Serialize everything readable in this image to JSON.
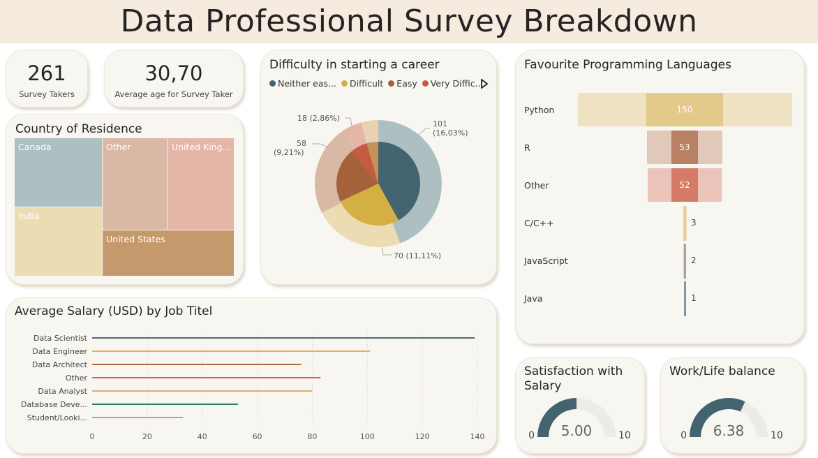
{
  "header": {
    "title": "Data Professional Survey Breakdown"
  },
  "kpis": [
    {
      "value": "261",
      "label": "Survey Takers"
    },
    {
      "value": "30,70",
      "label": "Average age for Survey Taker"
    }
  ],
  "treemap": {
    "title": "Country of Residence",
    "cells": [
      {
        "label": "Canada",
        "color": "#adbfc1"
      },
      {
        "label": "Other",
        "color": "#d9b8a6"
      },
      {
        "label": "United King...",
        "color": "#e5b5a8"
      },
      {
        "label": "India",
        "color": "#ecdcb4"
      },
      {
        "label": "United States",
        "color": "#c49a6c"
      }
    ]
  },
  "difficulty": {
    "title": "Difficulty in starting a career",
    "legend": [
      {
        "label": "Neither eas...",
        "color": "#41646f"
      },
      {
        "label": "Difficult",
        "color": "#d4af43"
      },
      {
        "label": "Easy",
        "color": "#a4613a"
      },
      {
        "label": "Very Diffic...",
        "color": "#c55b40"
      }
    ],
    "legend_more_icon": "triangle-right-icon",
    "labels": [
      {
        "line1": "101",
        "line2": "(16,03%)"
      },
      {
        "line1": "70 (11,11%)",
        "line2": ""
      },
      {
        "line1": "58",
        "line2": "(9,21%)"
      },
      {
        "line1": "18 (2,86%)",
        "line2": ""
      }
    ]
  },
  "languages": {
    "title": "Favourite Programming Languages",
    "items": [
      {
        "name": "Python",
        "value": 150,
        "color": "#e3c98a",
        "bg": "#eee2c2"
      },
      {
        "name": "R",
        "value": 53,
        "color": "#b88064",
        "bg": "#e0c9b9"
      },
      {
        "name": "Other",
        "value": 52,
        "color": "#d37b66",
        "bg": "#ecc3b8"
      },
      {
        "name": "C/C++",
        "value": 3,
        "color": "#e3c98a",
        "bg": "#eee2c2"
      },
      {
        "name": "JavaScript",
        "value": 2,
        "color": "#a9a29d",
        "bg": "#d6d1cc"
      },
      {
        "name": "Java",
        "value": 1,
        "color": "#7d9aa0",
        "bg": "#c6d3d5"
      }
    ]
  },
  "chart_data": [
    {
      "type": "bar",
      "title": "Average Salary (USD) by Job Titel",
      "categories": [
        "Data Scientist",
        "Data Engineer",
        "Data Architect",
        "Other",
        "Data Analyst",
        "Database Deve...",
        "Student/Looki..."
      ],
      "values": [
        139,
        101,
        76,
        83,
        80,
        53,
        33
      ],
      "colors": [
        "#4f6b70",
        "#e0b25c",
        "#b0683f",
        "#cf6b4a",
        "#d8ae7a",
        "#2a7d64",
        "#b0a39c"
      ],
      "xticks": [
        "0",
        "20",
        "40",
        "60",
        "80",
        "100",
        "120",
        "140"
      ],
      "xlim": [
        0,
        140
      ],
      "grid": true
    }
  ],
  "gauges": [
    {
      "title": "Satisfaction with Salary",
      "value": 5.0,
      "display": "5.00",
      "min_label": "0",
      "max_label": "10",
      "min": 0,
      "max": 10,
      "color": "#41646f"
    },
    {
      "title": "Work/Life balance",
      "value": 6.38,
      "display": "6.38",
      "min_label": "0",
      "max_label": "10",
      "min": 0,
      "max": 10,
      "color": "#41646f"
    }
  ]
}
